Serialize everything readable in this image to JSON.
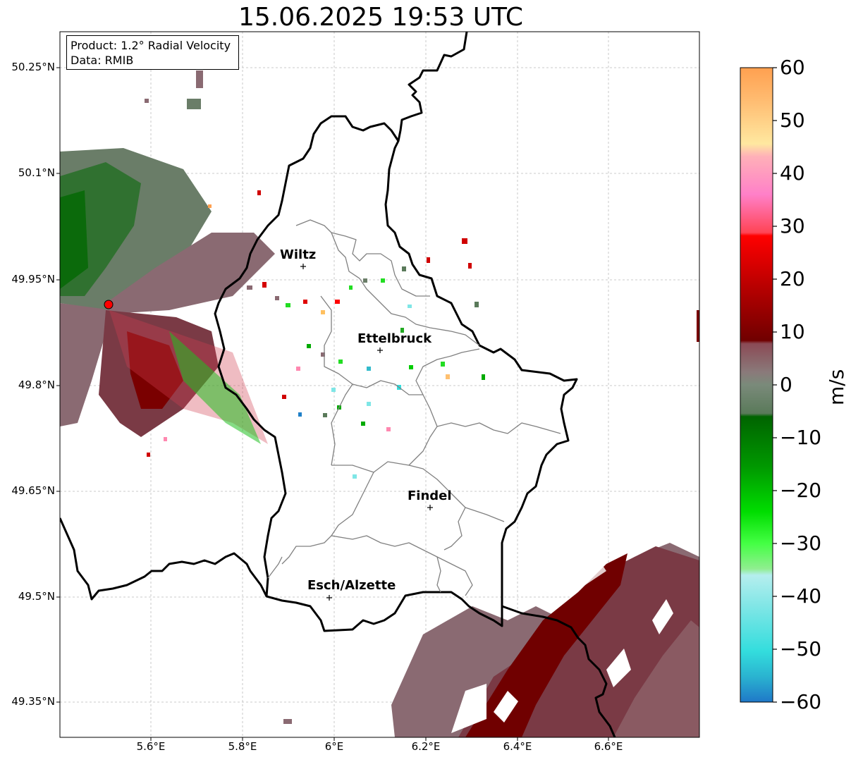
{
  "title": "15.06.2025 19:53 UTC",
  "info_box": {
    "product": "Product: 1.2° Radial Velocity",
    "data": "Data: RMIB"
  },
  "lat_ticks": [
    "50.25°N",
    "50.1°N",
    "49.95°N",
    "49.8°N",
    "49.65°N",
    "49.5°N",
    "49.35°N"
  ],
  "lon_ticks": [
    "5.6°E",
    "5.8°E",
    "6°E",
    "6.2°E",
    "6.4°E",
    "6.6°E"
  ],
  "cities": [
    "Wiltz",
    "Ettelbruck",
    "Findel",
    "Esch/Alzette"
  ],
  "colorbar": {
    "unit": "m/s",
    "tick_labels": [
      "60",
      "50",
      "40",
      "30",
      "20",
      "10",
      "0",
      "−10",
      "−20",
      "−30",
      "−40",
      "−50",
      "−60"
    ],
    "min": -60,
    "max": 60
  },
  "colors": {
    "radar_site": "#ff0000",
    "border": "#000000",
    "canton_lines": "#808080",
    "velocity_stops": [
      "#1f78c8",
      "#2ab3d0",
      "#33dddd",
      "#7fe6e6",
      "#b5eeee",
      "#90ee90",
      "#33ff33",
      "#00dd00",
      "#00aa00",
      "#006400",
      "#5a7a5a",
      "#7a8a7a",
      "#8a7a7a",
      "#8b5060",
      "#800000",
      "#b40000",
      "#e60000",
      "#ff3355",
      "#ff6680",
      "#ff88c8",
      "#ffb0c0",
      "#ffe09a",
      "#ffc070",
      "#ffa050"
    ]
  }
}
